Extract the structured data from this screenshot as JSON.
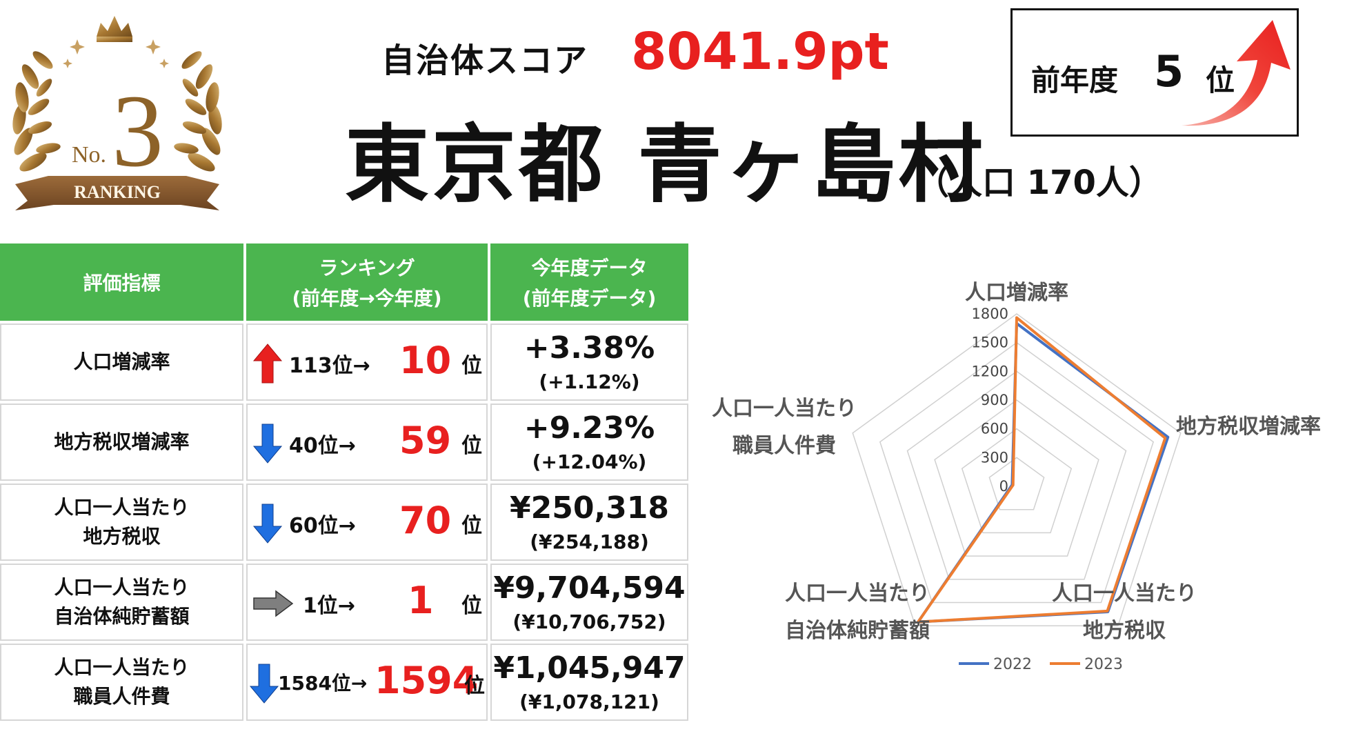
{
  "header": {
    "score_label": "自治体スコア",
    "score_value": "8041.9pt",
    "name": "東京都 青ヶ島村",
    "population": "（人口 170人）",
    "badge": {
      "prefix": "No.",
      "number": "3",
      "ribbon": "RANKING"
    },
    "prev_year": {
      "label": "前年度",
      "rank": "5",
      "unit": "位"
    }
  },
  "table": {
    "headers": {
      "indicator": "評価指標",
      "ranking_1": "ランキング",
      "ranking_2": "(前年度→今年度)",
      "data_1": "今年度データ",
      "data_2": "(前年度データ)"
    },
    "rows": [
      {
        "label_1": "人口増減率",
        "label_2": "",
        "arrow": "up",
        "rank_from": "113位→",
        "rank_to": "10",
        "unit": "位",
        "current": "+3.38%",
        "previous": "(+1.12%)"
      },
      {
        "label_1": "地方税収増減率",
        "label_2": "",
        "arrow": "down",
        "rank_from": "40位→",
        "rank_to": "59",
        "unit": "位",
        "current": "+9.23%",
        "previous": "(+12.04%)"
      },
      {
        "label_1": "人口一人当たり",
        "label_2": "地方税収",
        "arrow": "down",
        "rank_from": "60位→",
        "rank_to": "70",
        "unit": "位",
        "current": "¥250,318",
        "previous": "(¥254,188)"
      },
      {
        "label_1": "人口一人当たり",
        "label_2": "自治体純貯蓄額",
        "arrow": "right",
        "rank_from": "1位→",
        "rank_to": "1",
        "unit": "位",
        "current": "¥9,704,594",
        "previous": "(¥10,706,752)"
      },
      {
        "label_1": "人口一人当たり",
        "label_2": "職員人件費",
        "arrow": "down",
        "rank_from": "1584位→",
        "rank_to": "1594",
        "unit": "位",
        "current": "¥1,045,947",
        "previous": "(¥1,078,121)"
      }
    ]
  },
  "colors": {
    "accent_red": "#e8201f",
    "header_green": "#4bb54f",
    "arrow_up": "#e8201f",
    "arrow_down": "#1f6fe0",
    "arrow_same": "#7f7f7f",
    "series_2022": "#4472c4",
    "series_2023": "#ed7d31"
  },
  "chart_data": {
    "type": "radar",
    "axes": [
      {
        "label_1": "人口増減率",
        "label_2": ""
      },
      {
        "label_1": "地方税収増減率",
        "label_2": ""
      },
      {
        "label_1": "人口一人当たり",
        "label_2": "地方税収"
      },
      {
        "label_1": "人口一人当たり",
        "label_2": "自治体純貯蓄額"
      },
      {
        "label_1": "人口一人当たり",
        "label_2": "職員人件費"
      }
    ],
    "range": [
      0,
      1800
    ],
    "ticks": [
      0,
      300,
      600,
      900,
      1200,
      1500,
      1800
    ],
    "series": [
      {
        "name": "2022",
        "values": [
          1700,
          1660,
          1620,
          1750,
          50
        ]
      },
      {
        "name": "2023",
        "values": [
          1760,
          1630,
          1610,
          1750,
          40
        ]
      }
    ],
    "legend": "bottom"
  }
}
